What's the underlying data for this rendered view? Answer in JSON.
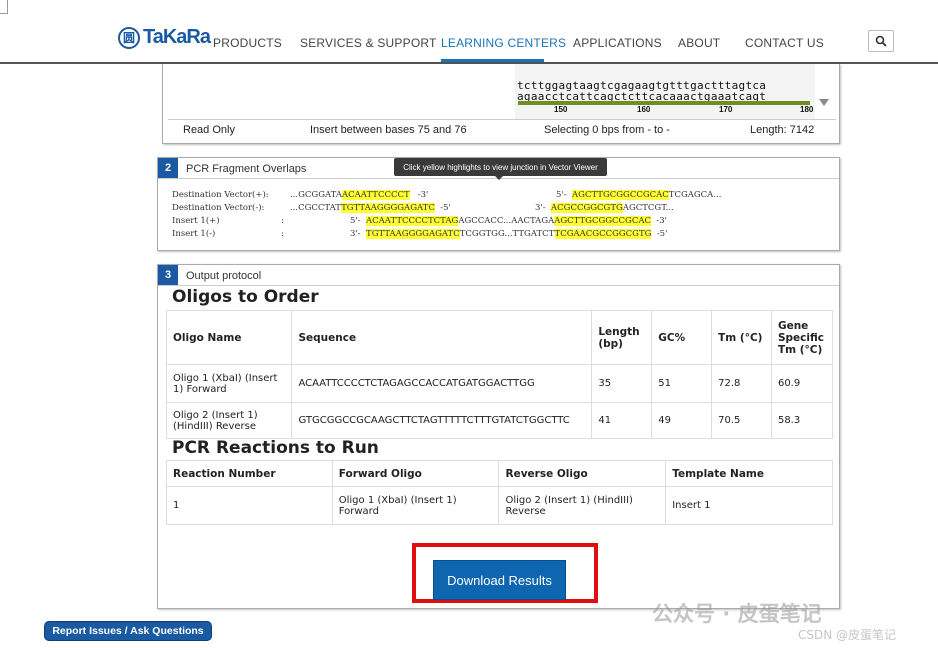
{
  "brand": {
    "logo_mark": "圆",
    "logo_text": "TaKaRa"
  },
  "nav": {
    "products": "PRODUCTS",
    "services": "SERVICES & SUPPORT",
    "learning": "LEARNING CENTERS",
    "applications": "APPLICATIONS",
    "about": "ABOUT",
    "contact": "CONTACT US"
  },
  "viewer": {
    "seq_top": "tcttggagtaagtcgagaagtgtttgactttagtca",
    "seq_bottom": "agaacctcattcagctcttcacaaactgaaatcagt",
    "ticks": [
      "150",
      "160",
      "170",
      "180"
    ],
    "mode": "Read Only",
    "insert_info": "Insert between bases 75 and 76",
    "selection": "Selecting 0 bps from - to -",
    "length": "Length: 7142"
  },
  "overlaps": {
    "step": "2",
    "title": "PCR Fragment Overlaps",
    "tooltip": "Click yellow highlights to view junction in Vector Viewer",
    "rows": [
      {
        "label": "Destination Vector(+):",
        "a": "...GCGGATA",
        "a_hl": "ACAATTCCCCT",
        "a_end": "   -3'",
        "b": "5'-  ",
        "b_hl": "AGCTTGCGGCCGCAC",
        "b_end": "TCGAGCA..."
      },
      {
        "label": "Destination Vector(-):",
        "a": "...CGCCTAT",
        "a_hl": "TGTTAAGGGGAGATC",
        "a_end": "  -5'",
        "b": "3'-  ",
        "b_hl": "ACGCCGGCGTG",
        "b_end": "AGCTCGT..."
      },
      {
        "label": "Insert 1(+)",
        "a": "5'-  ",
        "a_hl": "ACAATTCCCCTCTAG",
        "a_end": "AGCCACC...AACTAGA",
        "b_hl": "AGCTTGCGGCCGCAC",
        "b_end": "  -3'"
      },
      {
        "label": "Insert 1(-)",
        "a": "3'-  ",
        "a_hl": "TGTTAAGGGGAGATC",
        "a_end": "TCGGTGG...TTGATCT",
        "b_hl": "TCGAACGCCGGCGTG",
        "b_end": "  -5'"
      }
    ]
  },
  "output": {
    "step": "3",
    "title": "Output protocol",
    "oligos_heading": "Oligos to Order",
    "oligo_headers": [
      "Oligo Name",
      "Sequence",
      "Length (bp)",
      "GC%",
      "Tm (°C)",
      "Gene Specific Tm (°C)"
    ],
    "oligos": [
      {
        "name": "Oligo 1 (XbaI) (Insert 1) Forward",
        "sequence": "ACAATTCCCCTCTAGAGCCACCATGATGGACTTGG",
        "length": "35",
        "gc": "51",
        "tm": "72.8",
        "gs_tm": "60.9"
      },
      {
        "name": "Oligo 2 (Insert 1) (HindIII) Reverse",
        "sequence": "GTGCGGCCGCAAGCTTCTAGTTTTTCTTTGTATCTGGCTTC",
        "length": "41",
        "gc": "49",
        "tm": "70.5",
        "gs_tm": "58.3"
      }
    ],
    "pcr_heading": "PCR Reactions to Run",
    "pcr_headers": [
      "Reaction Number",
      "Forward Oligo",
      "Reverse Oligo",
      "Template Name"
    ],
    "pcr": [
      {
        "number": "1",
        "forward": "Oligo 1 (XbaI) (Insert 1) Forward",
        "reverse": "Oligo 2 (Insert 1) (HindIII) Reverse",
        "template": "Insert 1"
      }
    ],
    "download_label": "Download Results"
  },
  "footer": {
    "report_label": "Report Issues / Ask Questions"
  },
  "watermark": {
    "line1": "公众号 · 皮蛋笔记",
    "line2": "CSDN @皮蛋笔记"
  },
  "colors": {
    "brand_blue": "#1a5aa3",
    "link_blue": "#1a73b8",
    "button_blue": "#0e66b0",
    "highlight_yellow": "#ffff33",
    "annotation_red": "#e01010",
    "sequence_bar": "#6f8f1e"
  }
}
